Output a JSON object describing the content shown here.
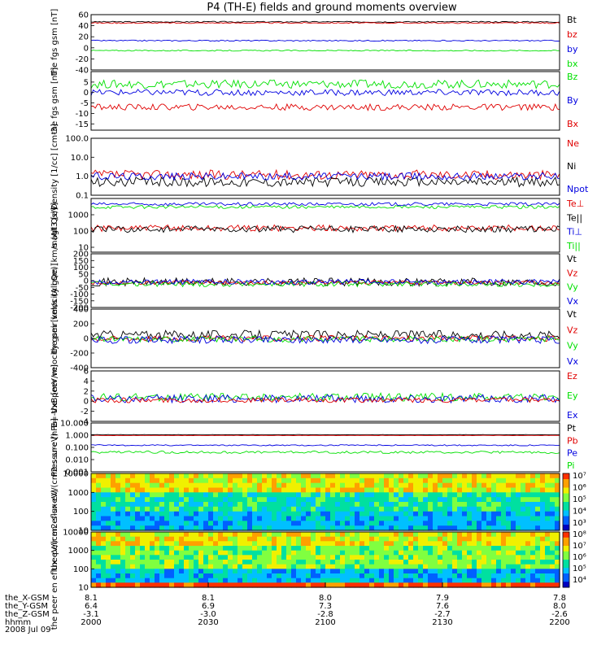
{
  "title": "P4 (TH-E) fields and ground moments overview",
  "date": "2008 Jul 09",
  "colors": {
    "black": "#000000",
    "red": "#e00000",
    "green": "#00e000",
    "blue": "#0000e0"
  },
  "footer": {
    "rows": [
      {
        "label": "the_X-GSM",
        "values": [
          "8.1",
          "8.1",
          "8.0",
          "7.9",
          "7.8"
        ]
      },
      {
        "label": "the_Y-GSM",
        "values": [
          "6.4",
          "6.9",
          "7.3",
          "7.6",
          "8.0"
        ]
      },
      {
        "label": "the_Z-GSM",
        "values": [
          "-3.1",
          "-3.0",
          "-2.8",
          "-2.7",
          "-2.6"
        ]
      },
      {
        "label": "hhmm",
        "values": [
          "2000",
          "2030",
          "2100",
          "2130",
          "2200"
        ]
      }
    ]
  },
  "chart_data": [
    {
      "type": "line",
      "ylabel": "the fgs gsm [nT]",
      "ylim": [
        -40,
        60
      ],
      "yticks": [
        60,
        40,
        20,
        0,
        -20,
        -40
      ],
      "legend": [
        "Bt",
        "bz",
        "by",
        "bx"
      ],
      "series": [
        {
          "name": "Bt",
          "color": "#000000",
          "level": 47,
          "noise": 1
        },
        {
          "name": "bz",
          "color": "#e00000",
          "level": 45,
          "noise": 1
        },
        {
          "name": "by",
          "color": "#0000e0",
          "level": 13,
          "noise": 1
        },
        {
          "name": "bx",
          "color": "#00e000",
          "level": -5,
          "noise": 1
        }
      ]
    },
    {
      "type": "line",
      "ylabel": "the fgs gsm [nT]",
      "ylim": [
        -18,
        10
      ],
      "yticks": [
        5,
        0,
        -5,
        -10,
        -15
      ],
      "legend": [
        "Bz",
        "By",
        "Bx"
      ],
      "series": [
        {
          "name": "Bz",
          "color": "#00e000",
          "level": 4,
          "noise": 2
        },
        {
          "name": "By",
          "color": "#0000e0",
          "level": 0,
          "noise": 1.5
        },
        {
          "name": "Bx",
          "color": "#e00000",
          "level": -7,
          "noise": 1.5
        }
      ]
    },
    {
      "type": "line",
      "ylabel": "Density [1/cc] [cm-3]",
      "ylim": [
        0.1,
        100
      ],
      "log": true,
      "yticks": [
        "100.0",
        "10.0",
        "1.0",
        "0.1"
      ],
      "legend": [
        "Ne",
        "Ni",
        "Npot"
      ],
      "series": [
        {
          "name": "Ne",
          "color": "#e00000",
          "level": 1.2,
          "noise": 0.5
        },
        {
          "name": "Ni",
          "color": "#000000",
          "level": 0.5,
          "noise": 0.5
        },
        {
          "name": "Npot",
          "color": "#0000e0",
          "level": 1.0,
          "noise": 0.4
        }
      ]
    },
    {
      "type": "line",
      "ylabel": "magt3 [eV]",
      "ylim": [
        5,
        10000
      ],
      "log": true,
      "yticks": [
        "1000",
        "100",
        "10"
      ],
      "legend": [
        "Te⊥",
        "Te||",
        "Ti⊥",
        "Ti||"
      ],
      "series": [
        {
          "name": "Ti⊥",
          "color": "#0000e0",
          "level": 4500,
          "noise": 0.2
        },
        {
          "name": "Ti||",
          "color": "#00e000",
          "level": 3000,
          "noise": 0.2
        },
        {
          "name": "Te⊥",
          "color": "#e00000",
          "level": 150,
          "noise": 0.4
        },
        {
          "name": "Te||",
          "color": "#000000",
          "level": 130,
          "noise": 0.4
        }
      ]
    },
    {
      "type": "line",
      "ylabel": "the peir velocity gsm [km/s (All Qs)]",
      "ylim": [
        -200,
        200
      ],
      "yticks": [
        200,
        150,
        100,
        50,
        0,
        -50,
        -100,
        -150,
        -200
      ],
      "legend": [
        "Vt",
        "Vz",
        "Vy",
        "Vx"
      ],
      "series": [
        {
          "name": "Vt",
          "color": "#000000",
          "level": -10,
          "noise": 30
        },
        {
          "name": "Vz",
          "color": "#e00000",
          "level": -15,
          "noise": 15
        },
        {
          "name": "Vy",
          "color": "#00e000",
          "level": -25,
          "noise": 20
        },
        {
          "name": "Vx",
          "color": "#0000e0",
          "level": -10,
          "noise": 20
        }
      ]
    },
    {
      "type": "line",
      "ylabel": "the peer velocity gsm [km/s (All Qe)]",
      "ylim": [
        -400,
        400
      ],
      "yticks": [
        400,
        200,
        0,
        -200,
        -400
      ],
      "legend": [
        "Vt",
        "Vz",
        "Vy",
        "Vx"
      ],
      "series": [
        {
          "name": "Vt",
          "color": "#000000",
          "level": 50,
          "noise": 60
        },
        {
          "name": "Vz",
          "color": "#e00000",
          "level": 0,
          "noise": 40
        },
        {
          "name": "Vy",
          "color": "#00e000",
          "level": -10,
          "noise": 40
        },
        {
          "name": "Vx",
          "color": "#0000e0",
          "level": -20,
          "noise": 50
        }
      ]
    },
    {
      "type": "line",
      "ylabel": "E=-VxB [mV/m]",
      "ylim": [
        -4,
        6
      ],
      "yticks": [
        6,
        4,
        2,
        0,
        -2,
        -4
      ],
      "legend": [
        "Ez",
        "Ey",
        "Ex"
      ],
      "series": [
        {
          "name": "Ey",
          "color": "#00e000",
          "level": 0.8,
          "noise": 0.8
        },
        {
          "name": "Ex",
          "color": "#0000e0",
          "level": 0.5,
          "noise": 0.8
        },
        {
          "name": "Ez",
          "color": "#e00000",
          "level": 0.2,
          "noise": 0.5
        }
      ]
    },
    {
      "type": "line",
      "ylabel": "Pressure [nPa]",
      "ylim": [
        0.001,
        10
      ],
      "log": true,
      "yticks": [
        "10.000",
        "1.000",
        "0.100",
        "0.010",
        "0.001"
      ],
      "legend": [
        "Pt",
        "Pb",
        "Pe",
        "Pi"
      ],
      "series": [
        {
          "name": "Pt",
          "color": "#000000",
          "level": 1.1,
          "noise": 0.02
        },
        {
          "name": "Pb",
          "color": "#e00000",
          "level": 0.95,
          "noise": 0.02
        },
        {
          "name": "Pe",
          "color": "#0000e0",
          "level": 0.15,
          "noise": 0.1
        },
        {
          "name": "Pi",
          "color": "#00e000",
          "level": 0.04,
          "noise": 0.2
        }
      ]
    },
    {
      "type": "heatmap",
      "ylabel": "the peir en eflux eV/(cm2-s-sr-eV)",
      "ylim": [
        10,
        10000
      ],
      "log": true,
      "yticks": [
        "10000",
        "1000",
        "100",
        "10"
      ],
      "colorbar_ticks": [
        "10⁷",
        "10⁶",
        "10⁵",
        "10⁴",
        "10³"
      ]
    },
    {
      "type": "heatmap",
      "ylabel": "the peer en eflux eV/(cm2-s-sr-eV)",
      "ylim": [
        10,
        10000
      ],
      "log": true,
      "yticks": [
        "10000",
        "1000",
        "100",
        "10"
      ],
      "colorbar_ticks": [
        "10⁸",
        "10⁷",
        "10⁶",
        "10⁵",
        "10⁴"
      ]
    }
  ]
}
